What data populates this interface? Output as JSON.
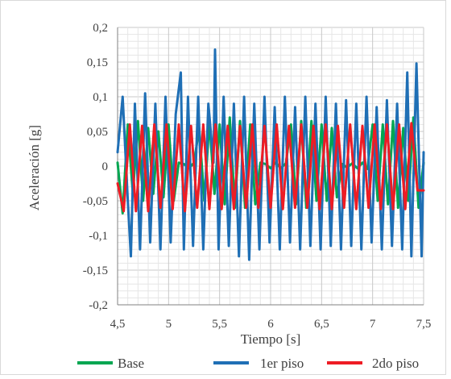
{
  "chart_data": {
    "type": "line",
    "xlabel": "Tiempo [s]",
    "ylabel": "Aceleración [g]",
    "xlim": [
      4.5,
      7.5
    ],
    "ylim": [
      -0.2,
      0.2
    ],
    "x_ticks": [
      "4,5",
      "5",
      "5,5",
      "6",
      "6,5",
      "7",
      "7,5"
    ],
    "y_ticks": [
      "0,2",
      "0,15",
      "0,1",
      "0,05",
      "0",
      "-0,05",
      "-0,1",
      "-0,15",
      "-0,2"
    ],
    "grid": true,
    "legend_position": "bottom",
    "colors": {
      "base": "#00a651",
      "piso1": "#1f6fb5",
      "piso2": "#ee1c24",
      "grid": "#d9d9d9",
      "axis": "#808080"
    },
    "series": [
      {
        "name": "Base",
        "x": [
          4.5,
          4.55,
          4.6,
          4.65,
          4.7,
          4.75,
          4.8,
          4.85,
          4.9,
          4.95,
          5.0,
          5.05,
          5.1,
          5.15,
          5.2,
          5.25,
          5.3,
          5.35,
          5.4,
          5.45,
          5.5,
          5.55,
          5.6,
          5.65,
          5.7,
          5.75,
          5.8,
          5.85,
          5.9,
          5.95,
          6.0,
          6.05,
          6.1,
          6.15,
          6.2,
          6.25,
          6.3,
          6.35,
          6.4,
          6.45,
          6.5,
          6.55,
          6.6,
          6.65,
          6.7,
          6.75,
          6.8,
          6.85,
          6.9,
          6.95,
          7.0,
          7.05,
          7.1,
          7.15,
          7.2,
          7.25,
          7.3,
          7.35,
          7.4,
          7.45,
          7.5
        ],
        "y": [
          0.005,
          -0.068,
          0.06,
          -0.04,
          0.065,
          -0.05,
          0.055,
          -0.04,
          0.05,
          -0.045,
          0.06,
          -0.05,
          0.005,
          0.003,
          -0.003,
          0.005,
          0.055,
          -0.05,
          0.065,
          -0.04,
          0.06,
          -0.055,
          0.07,
          -0.06,
          0.065,
          -0.06,
          0.06,
          -0.055,
          0.005,
          0.003,
          -0.003,
          0.005,
          -0.003,
          0.004,
          0.06,
          -0.055,
          0.065,
          -0.06,
          0.065,
          -0.05,
          0.06,
          -0.05,
          0.055,
          -0.045,
          0.003,
          -0.002,
          0.004,
          -0.003,
          0.005,
          -0.004,
          0.06,
          -0.05,
          0.06,
          -0.055,
          0.065,
          -0.06,
          0.055,
          -0.05,
          0.07,
          -0.06,
          0.005
        ]
      },
      {
        "name": "1er piso",
        "x": [
          4.5,
          4.55,
          4.6,
          4.63,
          4.67,
          4.72,
          4.77,
          4.82,
          4.87,
          4.92,
          4.97,
          5.02,
          5.07,
          5.12,
          5.15,
          5.19,
          5.24,
          5.29,
          5.34,
          5.39,
          5.44,
          5.455,
          5.49,
          5.54,
          5.59,
          5.64,
          5.69,
          5.74,
          5.79,
          5.84,
          5.89,
          5.94,
          5.99,
          6.04,
          6.09,
          6.14,
          6.19,
          6.24,
          6.29,
          6.34,
          6.39,
          6.44,
          6.49,
          6.54,
          6.59,
          6.64,
          6.69,
          6.74,
          6.79,
          6.84,
          6.89,
          6.94,
          6.99,
          7.04,
          7.09,
          7.14,
          7.19,
          7.24,
          7.29,
          7.34,
          7.38,
          7.43,
          7.48,
          7.5
        ],
        "y": [
          0.02,
          0.1,
          -0.05,
          -0.13,
          0.09,
          -0.12,
          0.105,
          -0.11,
          0.09,
          -0.12,
          0.1,
          -0.11,
          0.075,
          0.135,
          -0.12,
          0.1,
          -0.115,
          0.1,
          -0.12,
          0.09,
          0.005,
          0.168,
          -0.12,
          0.1,
          -0.115,
          0.09,
          -0.13,
          0.1,
          -0.135,
          0.09,
          -0.12,
          0.1,
          -0.11,
          0.085,
          -0.12,
          0.1,
          -0.11,
          0.085,
          -0.12,
          0.1,
          -0.115,
          0.09,
          -0.12,
          0.1,
          -0.115,
          0.09,
          -0.12,
          0.095,
          -0.115,
          0.09,
          -0.12,
          0.1,
          -0.11,
          0.085,
          -0.12,
          0.095,
          -0.115,
          0.09,
          -0.12,
          0.135,
          -0.13,
          0.148,
          -0.13,
          0.02
        ]
      },
      {
        "name": "2do piso",
        "x": [
          4.5,
          4.56,
          4.62,
          4.68,
          4.74,
          4.8,
          4.86,
          4.92,
          4.98,
          5.04,
          5.1,
          5.16,
          5.22,
          5.28,
          5.34,
          5.4,
          5.46,
          5.52,
          5.58,
          5.64,
          5.7,
          5.76,
          5.82,
          5.88,
          5.94,
          6.0,
          6.06,
          6.12,
          6.18,
          6.24,
          6.3,
          6.36,
          6.42,
          6.48,
          6.54,
          6.6,
          6.66,
          6.72,
          6.78,
          6.84,
          6.9,
          6.96,
          7.02,
          7.08,
          7.14,
          7.2,
          7.26,
          7.32,
          7.38,
          7.44,
          7.5
        ],
        "y": [
          -0.025,
          -0.065,
          0.06,
          -0.065,
          0.058,
          -0.065,
          0.06,
          -0.06,
          0.06,
          -0.062,
          0.06,
          -0.065,
          0.058,
          -0.06,
          0.06,
          -0.062,
          0.06,
          -0.062,
          0.058,
          -0.062,
          0.058,
          -0.06,
          0.06,
          -0.06,
          0.058,
          -0.06,
          0.06,
          -0.062,
          0.058,
          -0.06,
          0.06,
          -0.06,
          0.058,
          -0.062,
          0.06,
          -0.062,
          0.058,
          -0.06,
          0.06,
          -0.062,
          0.058,
          -0.06,
          0.06,
          -0.062,
          0.06,
          -0.062,
          0.06,
          -0.062,
          0.062,
          -0.035,
          -0.035
        ]
      }
    ]
  }
}
